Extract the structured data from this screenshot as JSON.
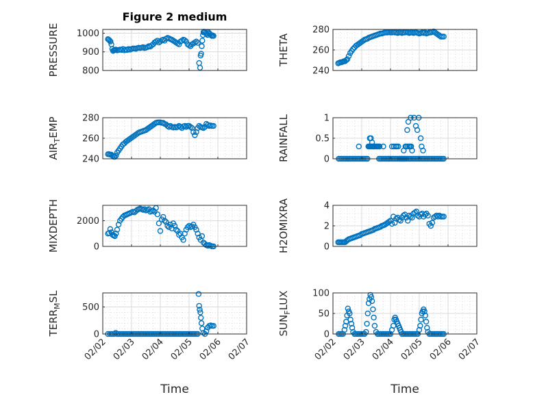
{
  "figure": {
    "title": "Figure 2 medium",
    "accent_color": "#0072BD",
    "xlabel": "Time",
    "x_tick_labels": [
      "02/02",
      "02/03",
      "02/04",
      "02/05",
      "02/06",
      "02/07"
    ],
    "x_range_days": [
      2,
      7
    ],
    "grid": true,
    "minor_grid": true,
    "marker": "circle"
  },
  "chart_data": [
    {
      "type": "scatter",
      "ylabel": "PRESSURE",
      "ylim": [
        800,
        1020
      ],
      "yticks": [
        800,
        900,
        1000
      ],
      "x": [
        2.18,
        2.21,
        2.24,
        2.27,
        2.3,
        2.33,
        2.36,
        2.39,
        2.42,
        2.45,
        2.5,
        2.55,
        2.6,
        2.65,
        2.7,
        2.75,
        2.8,
        2.85,
        2.9,
        2.95,
        3.0,
        3.05,
        3.1,
        3.15,
        3.2,
        3.25,
        3.3,
        3.35,
        3.4,
        3.45,
        3.5,
        3.55,
        3.6,
        3.65,
        3.7,
        3.75,
        3.8,
        3.85,
        3.9,
        3.95,
        4.0,
        4.05,
        4.1,
        4.15,
        4.2,
        4.25,
        4.3,
        4.35,
        4.4,
        4.45,
        4.5,
        4.55,
        4.6,
        4.65,
        4.7,
        4.75,
        4.8,
        4.85,
        4.9,
        4.95,
        5.0,
        5.05,
        5.1,
        5.15,
        5.2,
        5.25,
        5.3,
        5.35,
        5.38,
        5.4,
        5.42,
        5.44,
        5.46,
        5.48,
        5.5,
        5.52,
        5.55,
        5.58,
        5.61,
        5.64,
        5.67,
        5.7,
        5.73,
        5.76,
        5.79,
        5.82,
        5.85
      ],
      "y": [
        968,
        965,
        960,
        955,
        940,
        915,
        905,
        908,
        910,
        912,
        908,
        910,
        912,
        910,
        915,
        908,
        912,
        910,
        915,
        912,
        915,
        918,
        918,
        916,
        920,
        922,
        920,
        922,
        925,
        920,
        922,
        925,
        930,
        928,
        935,
        940,
        950,
        955,
        960,
        950,
        955,
        962,
        965,
        960,
        970,
        975,
        972,
        968,
        965,
        960,
        955,
        950,
        945,
        940,
        955,
        960,
        965,
        962,
        955,
        940,
        935,
        930,
        940,
        945,
        950,
        955,
        948,
        840,
        815,
        880,
        890,
        930,
        960,
        990,
        1005,
        1008,
        1005,
        1000,
        995,
        990,
        1005,
        1000,
        995,
        990,
        985,
        988,
        985
      ]
    },
    {
      "type": "scatter",
      "ylabel": "THETA",
      "ylim": [
        240,
        280
      ],
      "yticks": [
        240,
        260,
        280
      ],
      "x": [
        2.18,
        2.22,
        2.26,
        2.3,
        2.34,
        2.38,
        2.42,
        2.46,
        2.5,
        2.55,
        2.6,
        2.65,
        2.7,
        2.75,
        2.8,
        2.85,
        2.9,
        2.95,
        3.0,
        3.05,
        3.1,
        3.15,
        3.2,
        3.25,
        3.3,
        3.35,
        3.4,
        3.45,
        3.5,
        3.55,
        3.6,
        3.65,
        3.7,
        3.75,
        3.8,
        3.85,
        3.9,
        3.95,
        4.0,
        4.05,
        4.1,
        4.15,
        4.2,
        4.25,
        4.3,
        4.35,
        4.4,
        4.45,
        4.5,
        4.55,
        4.6,
        4.65,
        4.7,
        4.75,
        4.8,
        4.85,
        4.9,
        4.95,
        5.0,
        5.05,
        5.1,
        5.15,
        5.2,
        5.25,
        5.3,
        5.35,
        5.4,
        5.45,
        5.5,
        5.55,
        5.6,
        5.65,
        5.7,
        5.75,
        5.8,
        5.85
      ],
      "y": [
        247,
        247.5,
        248,
        248,
        248.5,
        249,
        249,
        250,
        251,
        254,
        257,
        259,
        261,
        262.5,
        264,
        265,
        266,
        267,
        268,
        269,
        270,
        270.5,
        271,
        272,
        272.5,
        273,
        273.5,
        274,
        274.5,
        275,
        275.5,
        276,
        276,
        276.5,
        277,
        277,
        277,
        277.5,
        277,
        277,
        277.5,
        277,
        277,
        276.5,
        277,
        277,
        276.5,
        277,
        277,
        277.5,
        277,
        276.5,
        277,
        277,
        276.5,
        277,
        277,
        276.5,
        276,
        276.5,
        277,
        276.5,
        277,
        276,
        276.5,
        277,
        277,
        277.5,
        278,
        277,
        276,
        275,
        274,
        273,
        273,
        273
      ]
    },
    {
      "type": "scatter",
      "ylabel": "AIR_TEMP",
      "ylim": [
        240,
        280
      ],
      "yticks": [
        240,
        260,
        280
      ],
      "x": [
        2.18,
        2.22,
        2.26,
        2.3,
        2.34,
        2.38,
        2.42,
        2.46,
        2.5,
        2.55,
        2.6,
        2.65,
        2.7,
        2.75,
        2.8,
        2.85,
        2.9,
        2.95,
        3.0,
        3.05,
        3.1,
        3.15,
        3.2,
        3.25,
        3.3,
        3.35,
        3.4,
        3.45,
        3.5,
        3.55,
        3.6,
        3.65,
        3.7,
        3.75,
        3.8,
        3.85,
        3.9,
        3.95,
        4.0,
        4.05,
        4.1,
        4.15,
        4.2,
        4.25,
        4.3,
        4.35,
        4.4,
        4.45,
        4.5,
        4.55,
        4.6,
        4.65,
        4.7,
        4.75,
        4.8,
        4.85,
        4.9,
        4.95,
        5.0,
        5.05,
        5.1,
        5.15,
        5.2,
        5.25,
        5.3,
        5.35,
        5.4,
        5.45,
        5.5,
        5.55,
        5.6,
        5.65,
        5.7,
        5.75,
        5.8,
        5.85
      ],
      "y": [
        244.5,
        244.5,
        244,
        244,
        243,
        242,
        242,
        243,
        246,
        248,
        250,
        252,
        254,
        255,
        256.5,
        257.5,
        258.5,
        259.5,
        260.5,
        261.5,
        262.5,
        263.5,
        264.5,
        265.5,
        266,
        266.5,
        267,
        267.5,
        268,
        269,
        270,
        271,
        272,
        273,
        274,
        275,
        275.5,
        275.5,
        275.5,
        275,
        275,
        274,
        273.5,
        272,
        271,
        272,
        271,
        270.5,
        271,
        270.5,
        271,
        272,
        271,
        270,
        271.5,
        272,
        271,
        272,
        272,
        271,
        270,
        266,
        263,
        266,
        270,
        272,
        271,
        270.5,
        270,
        271,
        274,
        273,
        272,
        272.5,
        272,
        272
      ]
    },
    {
      "type": "scatter",
      "ylabel": "RAINFALL",
      "ylim": [
        0,
        1
      ],
      "yticks": [
        0,
        0.5,
        1
      ],
      "x": [
        2.2,
        2.25,
        2.3,
        2.35,
        2.4,
        2.45,
        2.5,
        2.55,
        2.6,
        2.65,
        2.7,
        2.75,
        2.8,
        2.85,
        2.9,
        2.95,
        3.0,
        3.05,
        3.1,
        3.15,
        3.2,
        3.23,
        3.26,
        3.29,
        3.32,
        3.35,
        3.38,
        3.41,
        3.44,
        3.47,
        3.5,
        3.53,
        3.56,
        3.6,
        3.65,
        3.7,
        3.75,
        3.8,
        3.85,
        3.9,
        3.95,
        4.0,
        4.05,
        4.1,
        4.15,
        4.2,
        4.25,
        4.3,
        4.33,
        4.36,
        4.39,
        4.42,
        4.45,
        4.48,
        4.51,
        4.55,
        4.6,
        4.65,
        4.7,
        4.75,
        4.8,
        4.85,
        4.9,
        4.95,
        5.0,
        5.05,
        5.1,
        5.15,
        5.2,
        5.25,
        5.3,
        5.35,
        5.4,
        5.45,
        5.5,
        5.55,
        5.6,
        5.65,
        5.7,
        5.75,
        5.8,
        5.85,
        2.9,
        3.62,
        3.28,
        3.32,
        3.36,
        3.4,
        3.6,
        3.75,
        3.95,
        4.05,
        4.12,
        4.18,
        4.22,
        4.27,
        4.46,
        4.52,
        4.55,
        4.6,
        4.65,
        4.68,
        4.72,
        4.75,
        4.58,
        4.62,
        4.7,
        4.82,
        4.88,
        4.93,
        4.98,
        5.05,
        5.08,
        5.13
      ],
      "y": [
        0,
        0,
        0,
        0,
        0,
        0,
        0,
        0,
        0,
        0,
        0,
        0,
        0,
        0,
        0,
        0,
        0,
        0,
        0,
        0,
        0,
        0.3,
        0.3,
        0.3,
        0.3,
        0.3,
        0.3,
        0.3,
        0.3,
        0.3,
        0.3,
        0.3,
        0.3,
        0,
        0,
        0,
        0,
        0,
        0,
        0,
        0,
        0,
        0,
        0,
        0,
        0,
        0,
        0,
        0,
        0,
        0,
        0,
        0,
        0,
        0,
        0,
        0,
        0,
        0,
        0,
        0,
        0,
        0,
        0,
        0,
        0,
        0,
        0,
        0,
        0,
        0,
        0,
        0,
        0,
        0,
        0,
        0,
        0,
        0,
        0,
        0,
        0,
        0.3,
        0.3,
        0.5,
        0.5,
        0.4,
        0.3,
        0.3,
        0.3,
        0,
        0.3,
        0.3,
        0.3,
        0.3,
        0.3,
        0.2,
        0.3,
        0.3,
        0.3,
        0.3,
        0.3,
        0.3,
        0.2,
        0.7,
        0.9,
        1,
        1,
        0.8,
        0.7,
        1,
        0.5,
        0.3,
        0.2
      ]
    },
    {
      "type": "scatter",
      "ylabel": "MIXDEPTH",
      "ylim": [
        0,
        3200
      ],
      "yticks": [
        0,
        2000
      ],
      "x": [
        2.18,
        2.22,
        2.26,
        2.3,
        2.34,
        2.38,
        2.42,
        2.46,
        2.5,
        2.55,
        2.6,
        2.65,
        2.7,
        2.75,
        2.8,
        2.85,
        2.9,
        2.95,
        3.0,
        3.05,
        3.1,
        3.15,
        3.2,
        3.25,
        3.3,
        3.35,
        3.4,
        3.45,
        3.5,
        3.55,
        3.6,
        3.65,
        3.7,
        3.75,
        3.8,
        3.85,
        3.9,
        3.95,
        4.0,
        4.05,
        4.1,
        4.15,
        4.2,
        4.25,
        4.3,
        4.35,
        4.4,
        4.45,
        4.5,
        4.55,
        4.6,
        4.65,
        4.7,
        4.75,
        4.8,
        4.85,
        4.9,
        4.95,
        5.0,
        5.05,
        5.1,
        5.15,
        5.2,
        5.25,
        5.3,
        5.35,
        5.4,
        5.45,
        5.5,
        5.55,
        5.6,
        5.65,
        5.7,
        5.75,
        5.8,
        5.85
      ],
      "y": [
        1000,
        1050,
        1350,
        1100,
        900,
        850,
        800,
        1000,
        1300,
        1700,
        2000,
        2150,
        2300,
        2400,
        2450,
        2500,
        2550,
        2600,
        2650,
        2700,
        2650,
        2750,
        2850,
        2900,
        2950,
        2900,
        2850,
        2900,
        2800,
        2850,
        2900,
        2700,
        2750,
        2800,
        2700,
        3000,
        2500,
        1800,
        1200,
        2100,
        2300,
        2000,
        1900,
        1600,
        1500,
        1700,
        1400,
        1800,
        1600,
        1300,
        1200,
        900,
        1000,
        700,
        500,
        1000,
        1300,
        1500,
        1600,
        1500,
        1550,
        1700,
        1500,
        1300,
        1000,
        700,
        500,
        800,
        300,
        200,
        100,
        50,
        100,
        50,
        0,
        0
      ]
    },
    {
      "type": "scatter",
      "ylabel": "H2OMIXRA",
      "ylim": [
        0,
        4
      ],
      "yticks": [
        0,
        2,
        4
      ],
      "x": [
        2.18,
        2.22,
        2.26,
        2.3,
        2.34,
        2.38,
        2.42,
        2.46,
        2.5,
        2.55,
        2.6,
        2.65,
        2.7,
        2.75,
        2.8,
        2.85,
        2.9,
        2.95,
        3.0,
        3.05,
        3.1,
        3.15,
        3.2,
        3.25,
        3.3,
        3.35,
        3.4,
        3.45,
        3.5,
        3.55,
        3.6,
        3.65,
        3.7,
        3.75,
        3.8,
        3.85,
        3.9,
        3.95,
        4.0,
        4.05,
        4.1,
        4.15,
        4.2,
        4.25,
        4.3,
        4.35,
        4.4,
        4.45,
        4.5,
        4.55,
        4.6,
        4.65,
        4.7,
        4.75,
        4.8,
        4.85,
        4.9,
        4.95,
        5.0,
        5.05,
        5.1,
        5.15,
        5.2,
        5.25,
        5.3,
        5.35,
        5.4,
        5.45,
        5.5,
        5.55,
        5.6,
        5.65,
        5.7,
        5.75,
        5.8,
        5.85
      ],
      "y": [
        0.4,
        0.4,
        0.4,
        0.4,
        0.4,
        0.4,
        0.4,
        0.5,
        0.6,
        0.7,
        0.75,
        0.8,
        0.85,
        0.9,
        0.95,
        1.0,
        1.05,
        1.1,
        1.2,
        1.25,
        1.3,
        1.35,
        1.4,
        1.45,
        1.5,
        1.55,
        1.6,
        1.7,
        1.75,
        1.8,
        1.85,
        1.9,
        2.0,
        2.05,
        2.1,
        2.2,
        2.3,
        2.4,
        2.5,
        2.2,
        2.9,
        2.3,
        2.7,
        2.8,
        2.6,
        2.5,
        2.8,
        3.0,
        3.1,
        2.8,
        2.5,
        3.0,
        2.9,
        2.8,
        3.2,
        3.3,
        3.4,
        3.0,
        2.9,
        3.1,
        3.2,
        2.9,
        3.1,
        3.2,
        3.0,
        2.2,
        2.0,
        2.3,
        2.8,
        2.9,
        3.0,
        2.9,
        3.0,
        2.9,
        2.9,
        2.9
      ]
    },
    {
      "type": "scatter",
      "ylabel": "TERR_MSL",
      "ylim": [
        0,
        760
      ],
      "yticks": [
        0,
        500
      ],
      "x": [
        2.18,
        2.25,
        2.3,
        2.35,
        2.4,
        2.45,
        2.5,
        2.55,
        2.6,
        2.65,
        2.7,
        2.75,
        2.8,
        2.85,
        2.9,
        2.95,
        3.0,
        3.05,
        3.1,
        3.15,
        3.2,
        3.25,
        3.3,
        3.35,
        3.4,
        3.45,
        3.5,
        3.55,
        3.6,
        3.65,
        3.7,
        3.75,
        3.8,
        3.85,
        3.9,
        3.95,
        4.0,
        4.05,
        4.1,
        4.15,
        4.2,
        4.25,
        4.3,
        4.35,
        4.4,
        4.45,
        4.5,
        4.55,
        4.6,
        4.65,
        4.7,
        4.75,
        4.8,
        4.85,
        4.9,
        4.95,
        5.0,
        5.05,
        5.1,
        5.15,
        5.2,
        5.25,
        5.3,
        5.33,
        5.35,
        5.37,
        5.39,
        5.41,
        5.43,
        5.46,
        5.5,
        5.55,
        5.6,
        5.65,
        5.7,
        5.75,
        5.8,
        5.85
      ],
      "y": [
        0,
        0,
        0,
        0,
        0,
        20,
        0,
        0,
        0,
        0,
        0,
        0,
        0,
        0,
        0,
        0,
        0,
        0,
        0,
        0,
        0,
        0,
        0,
        0,
        0,
        0,
        0,
        0,
        0,
        0,
        0,
        0,
        0,
        0,
        0,
        0,
        0,
        0,
        0,
        0,
        0,
        0,
        0,
        0,
        0,
        0,
        0,
        0,
        0,
        0,
        0,
        0,
        0,
        0,
        0,
        0,
        0,
        0,
        0,
        0,
        0,
        0,
        0,
        740,
        520,
        450,
        400,
        300,
        200,
        100,
        20,
        0,
        50,
        120,
        150,
        160,
        150,
        150
      ]
    },
    {
      "type": "scatter",
      "ylabel": "SUN_FLUX",
      "ylim": [
        0,
        100
      ],
      "yticks": [
        0,
        50,
        100
      ],
      "x": [
        2.2,
        2.25,
        2.3,
        2.35,
        2.4,
        2.43,
        2.46,
        2.49,
        2.52,
        2.55,
        2.58,
        2.61,
        2.64,
        2.67,
        2.7,
        2.75,
        2.8,
        2.85,
        2.9,
        2.95,
        3.0,
        3.05,
        3.1,
        3.15,
        3.18,
        3.21,
        3.24,
        3.27,
        3.3,
        3.33,
        3.36,
        3.39,
        3.42,
        3.45,
        3.5,
        3.55,
        3.6,
        3.65,
        3.7,
        3.75,
        3.8,
        3.85,
        3.9,
        3.95,
        4.0,
        4.05,
        4.1,
        4.13,
        4.16,
        4.19,
        4.22,
        4.25,
        4.28,
        4.31,
        4.34,
        4.37,
        4.4,
        4.45,
        4.5,
        4.55,
        4.6,
        4.65,
        4.7,
        4.75,
        4.8,
        4.85,
        4.9,
        4.95,
        5.0,
        5.03,
        5.06,
        5.09,
        5.12,
        5.15,
        5.18,
        5.21,
        5.24,
        5.27,
        5.3,
        5.35,
        5.4,
        5.45,
        5.5,
        5.55,
        5.6,
        5.65,
        5.7,
        5.75,
        5.8,
        5.85
      ],
      "y": [
        0,
        0,
        0,
        0,
        10,
        20,
        30,
        45,
        62,
        55,
        50,
        35,
        25,
        15,
        5,
        0,
        0,
        0,
        0,
        0,
        0,
        0,
        0,
        5,
        25,
        50,
        75,
        85,
        95,
        90,
        80,
        60,
        40,
        20,
        5,
        0,
        0,
        0,
        0,
        0,
        0,
        0,
        0,
        0,
        0,
        10,
        20,
        35,
        40,
        35,
        30,
        25,
        20,
        15,
        10,
        5,
        0,
        0,
        0,
        0,
        0,
        0,
        0,
        0,
        0,
        0,
        0,
        0,
        10,
        20,
        35,
        50,
        55,
        60,
        55,
        45,
        30,
        15,
        5,
        0,
        0,
        0,
        0,
        0,
        0,
        0,
        0,
        0,
        0,
        0
      ]
    }
  ]
}
